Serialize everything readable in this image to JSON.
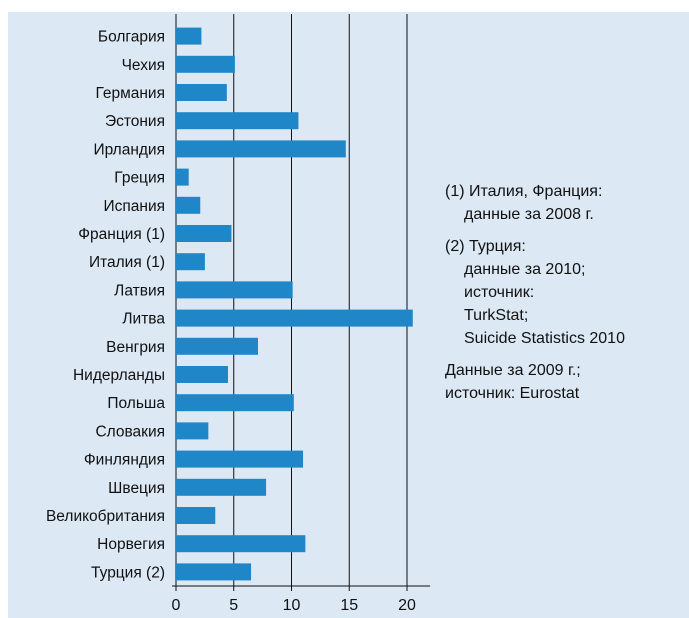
{
  "colors": {
    "panel": "#dce8f4",
    "bar": "#1f86c8",
    "grid": "#111111",
    "text": "#111111"
  },
  "chart_data": {
    "type": "bar",
    "orientation": "horizontal",
    "categories": [
      "Болгария",
      "Чехия",
      "Германия",
      "Эстония",
      "Ирландия",
      "Греция",
      "Испания",
      "Франция (1)",
      "Италия (1)",
      "Латвия",
      "Литва",
      "Венгрия",
      "Нидерланды",
      "Польша",
      "Словакия",
      "Финляндия",
      "Швеция",
      "Великобритания",
      "Норвегия",
      "Турция (2)"
    ],
    "values": [
      2.2,
      5.1,
      4.4,
      10.6,
      14.7,
      1.1,
      2.1,
      4.8,
      2.5,
      10.1,
      20.5,
      7.1,
      4.5,
      10.2,
      2.8,
      11.0,
      7.8,
      3.4,
      11.2,
      6.5
    ],
    "xticks": [
      0,
      5,
      10,
      15,
      20
    ],
    "xlim": [
      0,
      22
    ],
    "grid": "vertical",
    "title": "",
    "xlabel": "",
    "ylabel": ""
  },
  "notes": {
    "n1_line1": "(1) Италия, Франция:",
    "n1_line2": "данные за 2008 г.",
    "n2_line1": "(2) Турция:",
    "n2_line2": "данные за 2010;",
    "n2_line3": "источник:",
    "n2_line4": "TurkStat;",
    "n2_line5": "Suicide Statistics 2010",
    "n3_line1": "Данные за 2009 г.;",
    "n3_line2": "источник: Eurostat"
  }
}
